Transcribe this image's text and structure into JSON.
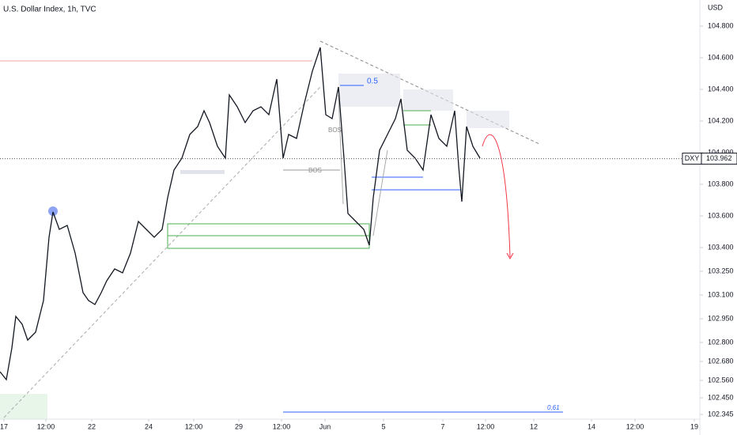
{
  "chart_data": {
    "type": "line",
    "title": "U.S. Dollar Index, 1h, TVC",
    "currency": "USD",
    "series": [
      {
        "name": "DXY",
        "color": "#131722",
        "x": [
          0,
          8,
          15,
          20,
          28,
          35,
          45,
          55,
          62,
          67,
          75,
          85,
          95,
          105,
          112,
          120,
          128,
          135,
          145,
          155,
          165,
          175,
          185,
          195,
          205,
          212,
          220,
          230,
          240,
          250,
          258,
          265,
          275,
          285,
          290,
          300,
          310,
          320,
          330,
          340,
          350,
          358,
          365,
          375,
          385,
          395,
          405,
          412,
          420,
          428,
          435,
          440,
          450,
          460,
          467,
          472,
          480,
          490,
          500,
          507,
          515,
          525,
          535,
          545,
          555,
          565,
          575,
          580,
          584,
          590,
          598,
          607
        ],
        "values": [
          102.615,
          102.565,
          102.765,
          102.965,
          102.915,
          102.815,
          102.865,
          103.065,
          103.465,
          103.625,
          103.515,
          103.54,
          103.365,
          103.115,
          103.065,
          103.04,
          103.115,
          103.19,
          103.265,
          103.24,
          103.365,
          103.565,
          103.515,
          103.465,
          103.515,
          103.715,
          103.89,
          103.965,
          104.115,
          104.165,
          104.265,
          104.19,
          104.04,
          103.965,
          104.365,
          104.29,
          104.19,
          104.265,
          104.29,
          104.24,
          104.465,
          103.965,
          104.115,
          104.09,
          104.315,
          104.515,
          104.665,
          104.24,
          104.215,
          104.415,
          103.965,
          103.615,
          103.565,
          103.515,
          103.415,
          103.715,
          104.015,
          104.115,
          104.215,
          104.34,
          104.015,
          103.965,
          103.89,
          104.24,
          104.09,
          104.04,
          104.265,
          103.915,
          103.69,
          104.165,
          104.04,
          103.965
        ]
      }
    ],
    "last_price": {
      "value": 103.962,
      "label": "103.962",
      "symbol": "DXY"
    },
    "xlim": [
      0,
      885
    ],
    "xticks": [
      {
        "value": 5,
        "label": "17"
      },
      {
        "value": 58,
        "label": "12:00"
      },
      {
        "value": 116,
        "label": "22"
      },
      {
        "value": 188,
        "label": "24"
      },
      {
        "value": 245,
        "label": "12:00"
      },
      {
        "value": 302,
        "label": "29"
      },
      {
        "value": 356,
        "label": "12:00"
      },
      {
        "value": 411,
        "label": "Jun"
      },
      {
        "value": 485,
        "label": "5"
      },
      {
        "value": 560,
        "label": "7"
      },
      {
        "value": 614,
        "label": "12:00"
      },
      {
        "value": 675,
        "label": "12"
      },
      {
        "value": 748,
        "label": "14"
      },
      {
        "value": 803,
        "label": "12:00"
      },
      {
        "value": 878,
        "label": "19"
      }
    ],
    "ylim": [
      102.265,
      104.965
    ],
    "yticks": [
      {
        "value": 104.8,
        "label": "104.800"
      },
      {
        "value": 104.6,
        "label": "104.600"
      },
      {
        "value": 104.4,
        "label": "104.400"
      },
      {
        "value": 104.2,
        "label": "104.200"
      },
      {
        "value": 104.0,
        "label": "104.000"
      },
      {
        "value": 103.8,
        "label": "103.800"
      },
      {
        "value": 103.6,
        "label": "103.600"
      },
      {
        "value": 103.4,
        "label": "103.400"
      },
      {
        "value": 103.25,
        "label": "103.250"
      },
      {
        "value": 103.1,
        "label": "103.100"
      },
      {
        "value": 102.95,
        "label": "102.950"
      },
      {
        "value": 102.8,
        "label": "102.800"
      },
      {
        "value": 102.68,
        "label": "102.680"
      },
      {
        "value": 102.56,
        "label": "102.560"
      },
      {
        "value": 102.45,
        "label": "102.450"
      },
      {
        "value": 102.345,
        "label": "102.345"
      }
    ],
    "annotations": [
      "0.5",
      "BOS",
      "BOS",
      "0,61"
    ]
  }
}
